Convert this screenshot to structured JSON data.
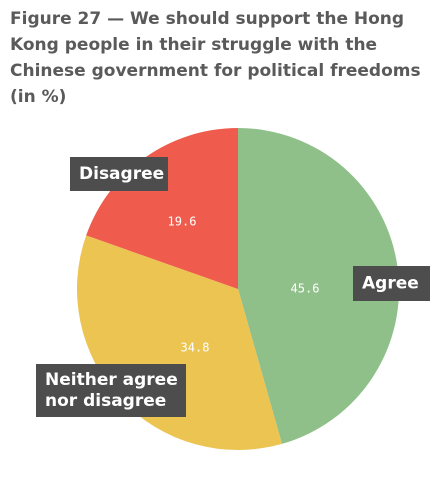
{
  "chart_data": {
    "type": "pie",
    "title": "Figure 27 — We should support the Hong Kong people in their struggle with the Chinese government for political freedoms (in %)",
    "slices": [
      {
        "label": "Agree",
        "label_lines": [
          "Agree"
        ],
        "value": 45.6,
        "value_text": "45.6",
        "color": "#8fc08a"
      },
      {
        "label": "Neither agree nor disagree",
        "label_lines": [
          "Neither agree",
          "nor disagree"
        ],
        "value": 34.8,
        "value_text": "34.8",
        "color": "#ebc452"
      },
      {
        "label": "Disagree",
        "label_lines": [
          "Disagree"
        ],
        "value": 19.6,
        "value_text": "19.6",
        "color": "#ef5b4c"
      }
    ],
    "start": "top",
    "direction": "clockwise",
    "callout_color": "#4d4d4d"
  }
}
